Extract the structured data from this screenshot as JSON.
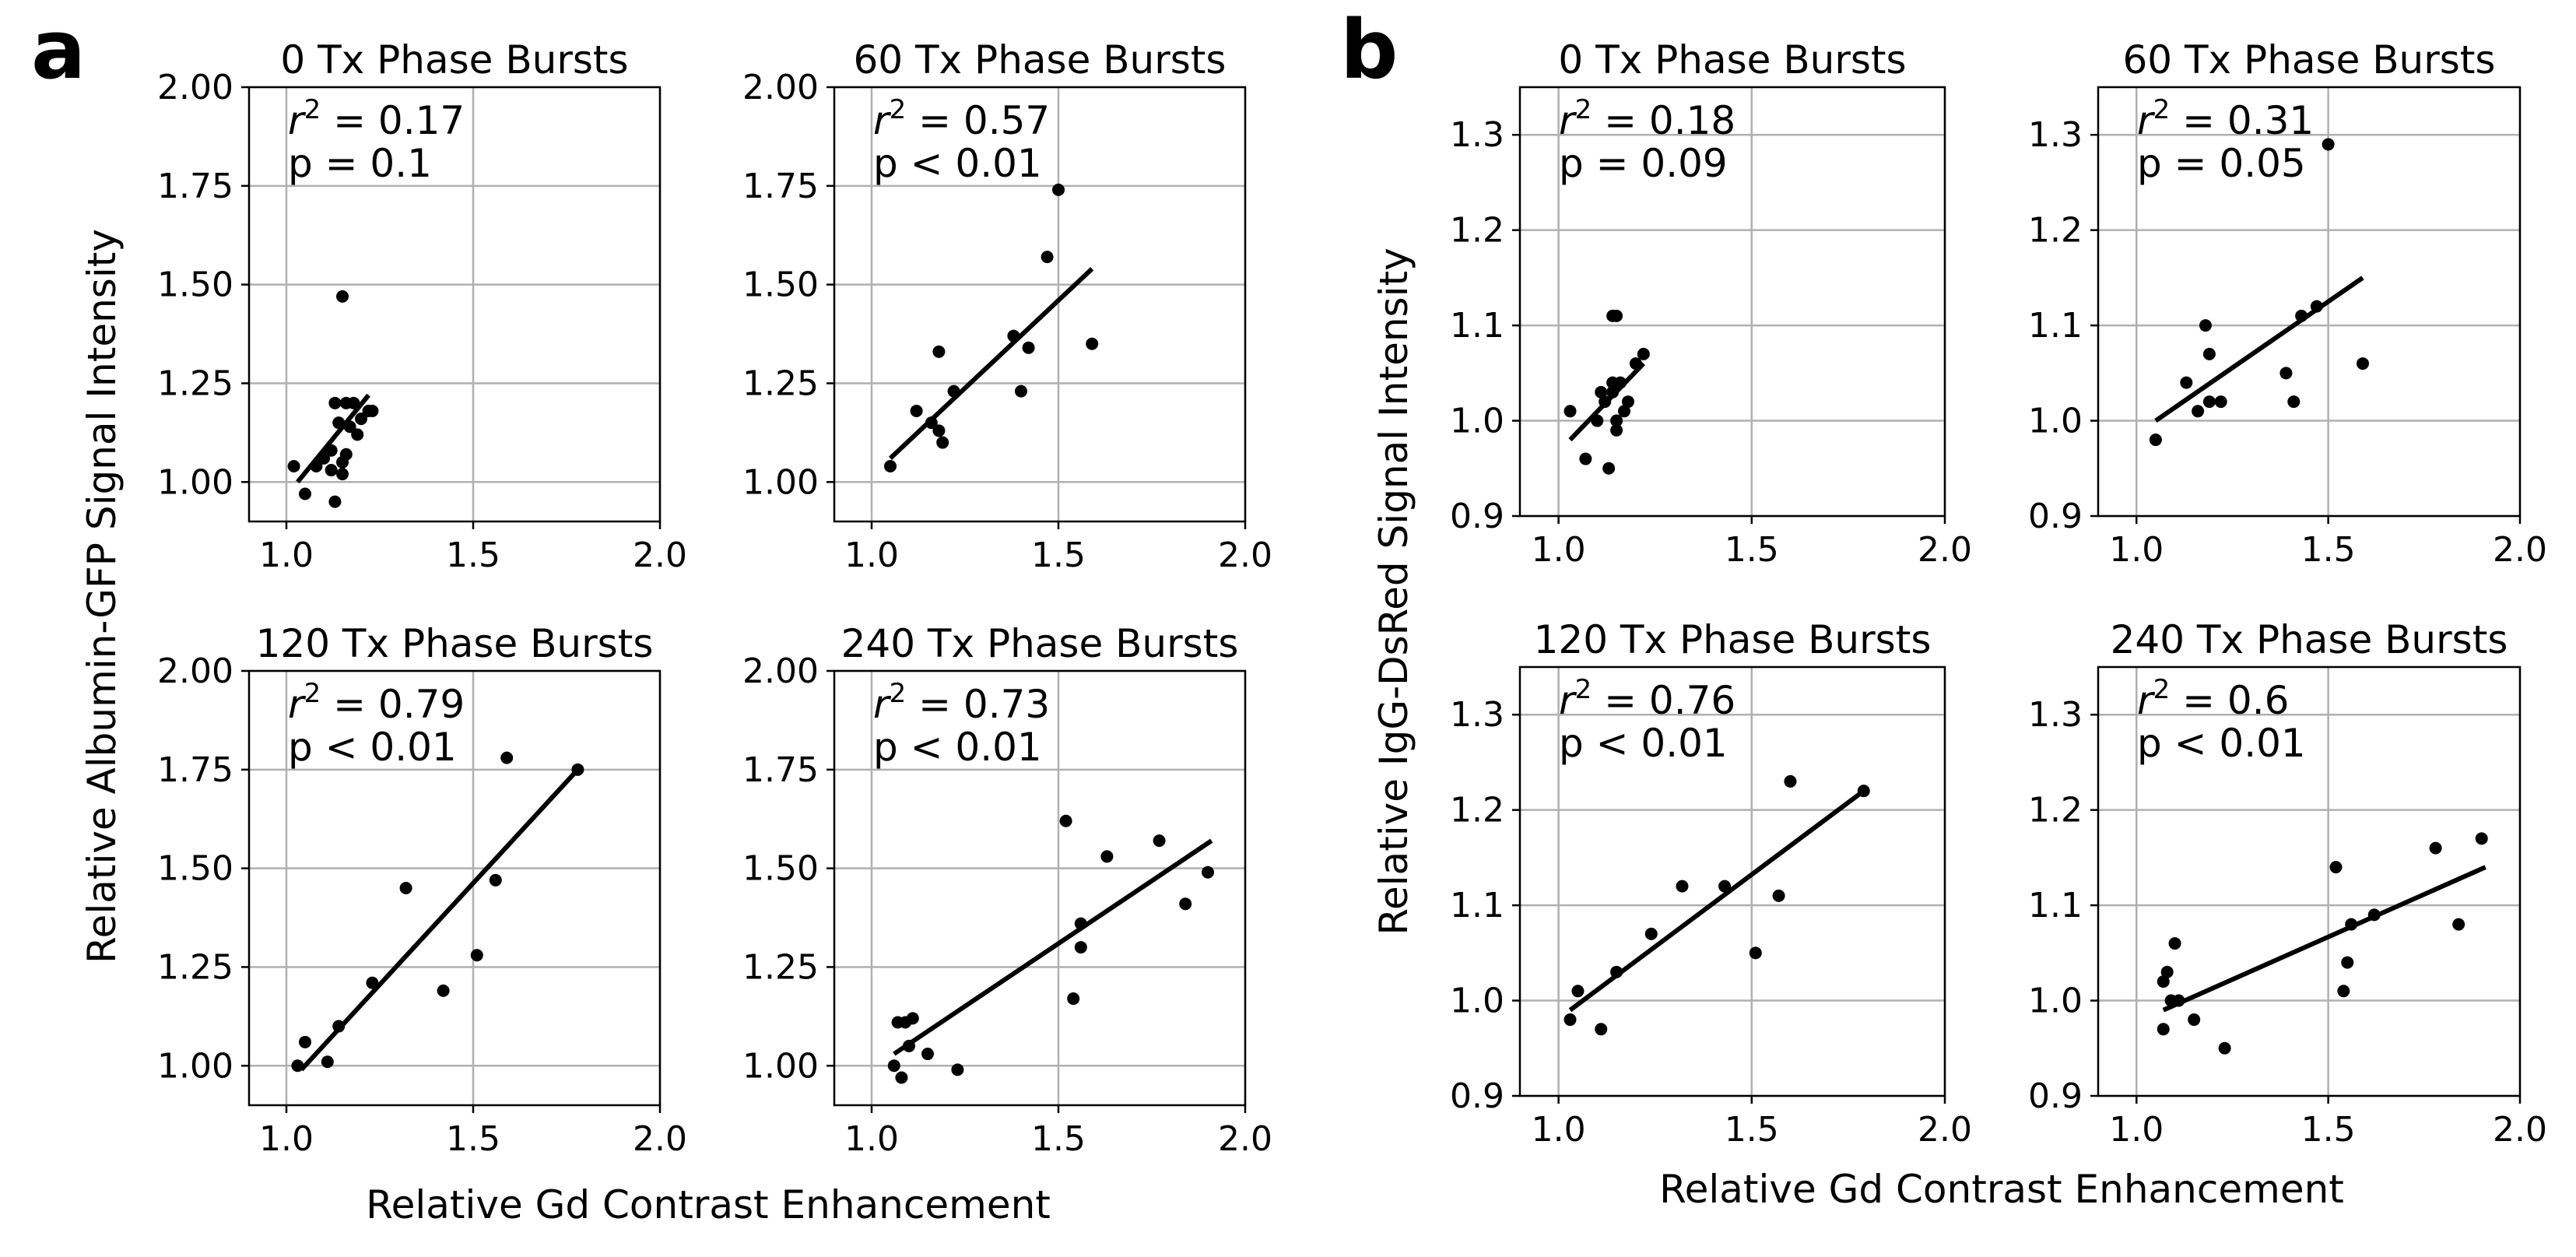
{
  "chart_data": [
    {
      "group": "a",
      "panel_label": "a",
      "title": "0 Tx Phase Bursts",
      "type": "scatter",
      "ylabel": "Relative Albumin-GFP Signal Intensity",
      "xlabel": "Relative Gd Contrast Enhancement",
      "xlim": [
        0.9,
        2.0
      ],
      "ylim": [
        0.9,
        2.0
      ],
      "xticks": [
        "1.0",
        "1.5",
        "2.0"
      ],
      "yticks": [
        "1.00",
        "1.25",
        "1.50",
        "1.75",
        "2.00"
      ],
      "r2": "0.17",
      "p_text": "p = 0.1",
      "x": [
        1.02,
        1.05,
        1.08,
        1.1,
        1.12,
        1.13,
        1.13,
        1.14,
        1.15,
        1.15,
        1.15,
        1.16,
        1.16,
        1.17,
        1.18,
        1.19,
        1.2,
        1.22,
        1.23,
        1.12
      ],
      "y": [
        1.04,
        0.97,
        1.04,
        1.06,
        1.08,
        0.95,
        1.2,
        1.15,
        1.47,
        1.05,
        1.02,
        1.07,
        1.2,
        1.14,
        1.2,
        1.12,
        1.16,
        1.18,
        1.18,
        1.03
      ],
      "fit": [
        [
          1.03,
          1.0
        ],
        [
          1.22,
          1.22
        ]
      ]
    },
    {
      "group": "a",
      "title": "60 Tx Phase Bursts",
      "type": "scatter",
      "xlim": [
        0.9,
        2.0
      ],
      "ylim": [
        0.9,
        2.0
      ],
      "xticks": [
        "1.0",
        "1.5",
        "2.0"
      ],
      "yticks": [
        "1.00",
        "1.25",
        "1.50",
        "1.75",
        "2.00"
      ],
      "r2": "0.57",
      "p_text": "p < 0.01",
      "x": [
        1.05,
        1.12,
        1.16,
        1.18,
        1.18,
        1.19,
        1.22,
        1.38,
        1.4,
        1.42,
        1.47,
        1.5,
        1.59
      ],
      "y": [
        1.04,
        1.18,
        1.15,
        1.33,
        1.13,
        1.1,
        1.23,
        1.37,
        1.23,
        1.34,
        1.57,
        1.74,
        1.35
      ],
      "fit": [
        [
          1.05,
          1.06
        ],
        [
          1.59,
          1.54
        ]
      ]
    },
    {
      "group": "a",
      "title": "120 Tx Phase Bursts",
      "type": "scatter",
      "xlim": [
        0.9,
        2.0
      ],
      "ylim": [
        0.9,
        2.0
      ],
      "xticks": [
        "1.0",
        "1.5",
        "2.0"
      ],
      "yticks": [
        "1.00",
        "1.25",
        "1.50",
        "1.75",
        "2.00"
      ],
      "r2": "0.79",
      "p_text": "p < 0.01",
      "x": [
        1.03,
        1.05,
        1.11,
        1.14,
        1.23,
        1.32,
        1.42,
        1.51,
        1.56,
        1.59,
        1.78
      ],
      "y": [
        1.0,
        1.06,
        1.01,
        1.1,
        1.21,
        1.45,
        1.19,
        1.28,
        1.47,
        1.78,
        1.75
      ],
      "fit": [
        [
          1.04,
          0.99
        ],
        [
          1.78,
          1.75
        ]
      ]
    },
    {
      "group": "a",
      "title": "240 Tx Phase Bursts",
      "type": "scatter",
      "xlim": [
        0.9,
        2.0
      ],
      "ylim": [
        0.9,
        2.0
      ],
      "xticks": [
        "1.0",
        "1.5",
        "2.0"
      ],
      "yticks": [
        "1.00",
        "1.25",
        "1.50",
        "1.75",
        "2.00"
      ],
      "r2": "0.73",
      "p_text": "p < 0.01",
      "x": [
        1.06,
        1.07,
        1.08,
        1.09,
        1.1,
        1.11,
        1.15,
        1.23,
        1.52,
        1.54,
        1.56,
        1.56,
        1.63,
        1.77,
        1.84,
        1.9
      ],
      "y": [
        1.0,
        1.11,
        0.97,
        1.11,
        1.05,
        1.12,
        1.03,
        0.99,
        1.62,
        1.17,
        1.3,
        1.36,
        1.53,
        1.57,
        1.41,
        1.49
      ],
      "fit": [
        [
          1.06,
          1.03
        ],
        [
          1.91,
          1.57
        ]
      ]
    },
    {
      "group": "b",
      "panel_label": "b",
      "title": "0 Tx Phase Bursts",
      "type": "scatter",
      "ylabel": "Relative IgG-DsRed Signal Intensity",
      "xlabel": "Relative Gd Contrast Enhancement",
      "xlim": [
        0.9,
        2.0
      ],
      "ylim": [
        0.9,
        1.35
      ],
      "xticks": [
        "1.0",
        "1.5",
        "2.0"
      ],
      "yticks": [
        "0.9",
        "1.0",
        "1.1",
        "1.2",
        "1.3"
      ],
      "r2": "0.18",
      "p_text": "p = 0.09",
      "x": [
        1.03,
        1.07,
        1.1,
        1.11,
        1.12,
        1.13,
        1.14,
        1.14,
        1.15,
        1.15,
        1.15,
        1.16,
        1.17,
        1.18,
        1.2,
        1.22,
        1.14
      ],
      "y": [
        1.01,
        0.96,
        1.0,
        1.03,
        1.02,
        0.95,
        1.04,
        1.11,
        1.11,
        1.0,
        0.99,
        1.04,
        1.01,
        1.02,
        1.06,
        1.07,
        1.03
      ],
      "fit": [
        [
          1.03,
          0.98
        ],
        [
          1.22,
          1.06
        ]
      ]
    },
    {
      "group": "b",
      "title": "60 Tx Phase Bursts",
      "type": "scatter",
      "xlim": [
        0.9,
        2.0
      ],
      "ylim": [
        0.9,
        1.35
      ],
      "xticks": [
        "1.0",
        "1.5",
        "2.0"
      ],
      "yticks": [
        "0.9",
        "1.0",
        "1.1",
        "1.2",
        "1.3"
      ],
      "r2": "0.31",
      "p_text": "p = 0.05",
      "x": [
        1.05,
        1.13,
        1.16,
        1.18,
        1.19,
        1.19,
        1.22,
        1.39,
        1.41,
        1.43,
        1.47,
        1.5,
        1.59
      ],
      "y": [
        0.98,
        1.04,
        1.01,
        1.1,
        1.07,
        1.02,
        1.02,
        1.05,
        1.02,
        1.11,
        1.12,
        1.29,
        1.06
      ],
      "fit": [
        [
          1.05,
          1.0
        ],
        [
          1.59,
          1.15
        ]
      ]
    },
    {
      "group": "b",
      "title": "120 Tx Phase Bursts",
      "type": "scatter",
      "xlim": [
        0.9,
        2.0
      ],
      "ylim": [
        0.9,
        1.35
      ],
      "xticks": [
        "1.0",
        "1.5",
        "2.0"
      ],
      "yticks": [
        "0.9",
        "1.0",
        "1.1",
        "1.2",
        "1.3"
      ],
      "r2": "0.76",
      "p_text": "p < 0.01",
      "x": [
        1.03,
        1.05,
        1.11,
        1.15,
        1.24,
        1.32,
        1.43,
        1.51,
        1.57,
        1.6,
        1.79
      ],
      "y": [
        0.98,
        1.01,
        0.97,
        1.03,
        1.07,
        1.12,
        1.12,
        1.05,
        1.11,
        1.23,
        1.22
      ],
      "fit": [
        [
          1.03,
          0.99
        ],
        [
          1.79,
          1.22
        ]
      ]
    },
    {
      "group": "b",
      "title": "240 Tx Phase Bursts",
      "type": "scatter",
      "xlim": [
        0.9,
        2.0
      ],
      "ylim": [
        0.9,
        1.35
      ],
      "xticks": [
        "1.0",
        "1.5",
        "2.0"
      ],
      "yticks": [
        "0.9",
        "1.0",
        "1.1",
        "1.2",
        "1.3"
      ],
      "r2": "0.6",
      "p_text": "p < 0.01",
      "x": [
        1.07,
        1.07,
        1.08,
        1.09,
        1.1,
        1.11,
        1.15,
        1.23,
        1.52,
        1.54,
        1.55,
        1.56,
        1.62,
        1.78,
        1.84,
        1.9
      ],
      "y": [
        0.97,
        1.02,
        1.03,
        1.0,
        1.06,
        1.0,
        0.98,
        0.95,
        1.14,
        1.01,
        1.04,
        1.08,
        1.09,
        1.16,
        1.08,
        1.17
      ],
      "fit": [
        [
          1.07,
          0.99
        ],
        [
          1.91,
          1.14
        ]
      ]
    }
  ]
}
